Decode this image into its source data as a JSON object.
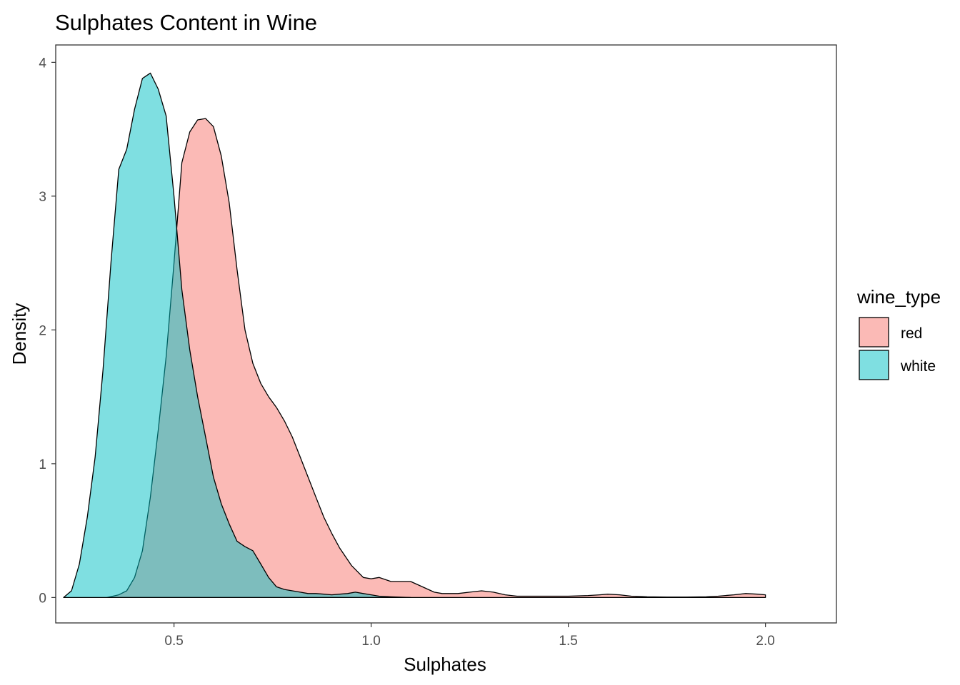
{
  "chart_data": {
    "type": "area",
    "subtype": "density",
    "title": "Sulphates Content in Wine",
    "xlabel": "Sulphates",
    "ylabel": "Density",
    "xlim": [
      0.2,
      2.18
    ],
    "ylim": [
      -0.19,
      4.13
    ],
    "x_ticks": [
      0.5,
      1.0,
      1.5,
      2.0
    ],
    "x_tick_labels": [
      "0.5",
      "1.0",
      "1.5",
      "2.0"
    ],
    "y_ticks": [
      0,
      1,
      2,
      3,
      4
    ],
    "y_tick_labels": [
      "0",
      "1",
      "2",
      "3",
      "4"
    ],
    "grid": false,
    "legend": {
      "title": "wine_type",
      "position": "right"
    },
    "series": [
      {
        "name": "red",
        "fill": "#F8766D",
        "opacity": 0.5,
        "x": [
          0.33,
          0.36,
          0.38,
          0.4,
          0.42,
          0.44,
          0.46,
          0.48,
          0.5,
          0.52,
          0.54,
          0.56,
          0.58,
          0.6,
          0.62,
          0.64,
          0.66,
          0.68,
          0.7,
          0.72,
          0.74,
          0.76,
          0.78,
          0.8,
          0.82,
          0.84,
          0.86,
          0.88,
          0.9,
          0.92,
          0.95,
          0.98,
          1.0,
          1.02,
          1.05,
          1.08,
          1.1,
          1.13,
          1.16,
          1.18,
          1.2,
          1.22,
          1.25,
          1.28,
          1.31,
          1.34,
          1.37,
          1.4,
          1.45,
          1.5,
          1.55,
          1.58,
          1.6,
          1.63,
          1.66,
          1.7,
          1.75,
          1.8,
          1.85,
          1.88,
          1.92,
          1.95,
          1.98,
          2.0
        ],
        "y": [
          0.0,
          0.02,
          0.05,
          0.15,
          0.35,
          0.75,
          1.25,
          1.8,
          2.5,
          3.25,
          3.48,
          3.57,
          3.58,
          3.52,
          3.3,
          2.95,
          2.45,
          2.0,
          1.75,
          1.6,
          1.5,
          1.42,
          1.32,
          1.2,
          1.05,
          0.9,
          0.75,
          0.6,
          0.48,
          0.37,
          0.24,
          0.15,
          0.14,
          0.15,
          0.12,
          0.12,
          0.12,
          0.08,
          0.04,
          0.03,
          0.03,
          0.03,
          0.04,
          0.05,
          0.04,
          0.02,
          0.01,
          0.01,
          0.01,
          0.01,
          0.015,
          0.02,
          0.025,
          0.02,
          0.01,
          0.005,
          0.003,
          0.003,
          0.005,
          0.01,
          0.02,
          0.03,
          0.025,
          0.02
        ]
      },
      {
        "name": "white",
        "fill": "#00BFC4",
        "opacity": 0.5,
        "x": [
          0.22,
          0.24,
          0.26,
          0.28,
          0.3,
          0.32,
          0.34,
          0.36,
          0.38,
          0.4,
          0.42,
          0.44,
          0.46,
          0.48,
          0.5,
          0.52,
          0.54,
          0.56,
          0.58,
          0.6,
          0.62,
          0.64,
          0.66,
          0.68,
          0.7,
          0.72,
          0.74,
          0.76,
          0.78,
          0.8,
          0.82,
          0.84,
          0.86,
          0.88,
          0.9,
          0.92,
          0.94,
          0.96,
          0.98,
          1.0,
          1.02,
          1.05,
          1.1
        ],
        "y": [
          0.0,
          0.05,
          0.25,
          0.6,
          1.05,
          1.7,
          2.5,
          3.2,
          3.35,
          3.65,
          3.88,
          3.92,
          3.8,
          3.6,
          3.0,
          2.3,
          1.85,
          1.5,
          1.2,
          0.9,
          0.7,
          0.55,
          0.42,
          0.38,
          0.35,
          0.25,
          0.15,
          0.08,
          0.06,
          0.05,
          0.04,
          0.03,
          0.03,
          0.025,
          0.02,
          0.025,
          0.03,
          0.04,
          0.03,
          0.02,
          0.01,
          0.005,
          0.0
        ]
      }
    ]
  }
}
